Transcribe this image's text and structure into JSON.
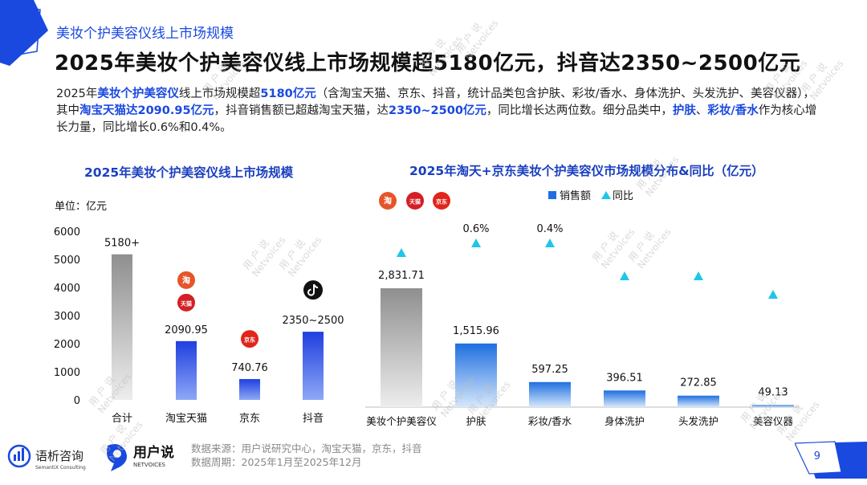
{
  "top_label": "美妆个护美容仪线上市场规模",
  "title": "2025年美妆个护美容仪线上市场规模超5180亿元，抖音达2350~2500亿元",
  "summary": [
    {
      "t": "2025年",
      "hl": false
    },
    {
      "t": "美妆个护美容仪",
      "hl": true
    },
    {
      "t": "线上市场规模超",
      "hl": false
    },
    {
      "t": "5180亿元",
      "hl": true
    },
    {
      "t": "（含淘宝天猫、京东、抖音，统计品类包含护肤、彩妆/香水、身体洗护、头发洗护、美容仪器），其中",
      "hl": false
    },
    {
      "t": "淘宝天猫达2090.95亿元",
      "hl": true
    },
    {
      "t": "，抖音销售额已超越淘宝天猫，达",
      "hl": false
    },
    {
      "t": "2350~2500亿元",
      "hl": true
    },
    {
      "t": "，同比增长达两位数。细分品类中，",
      "hl": false
    },
    {
      "t": "护肤",
      "hl": true
    },
    {
      "t": "、",
      "hl": false
    },
    {
      "t": "彩妆/香水",
      "hl": true
    },
    {
      "t": "作为核心增长力量，同比增长0.6%和0.4%。",
      "hl": false
    }
  ],
  "chart1_title": "2025年美妆个护美容仪线上市场规模",
  "chart2_title": "2025年淘天+京东美妆个护美容仪市场规模分布&同比（亿元）",
  "unit_label": "单位：亿元",
  "footer": {
    "source": "数据来源：用户说研究中心，淘宝天猫，京东，抖音",
    "period": "数据周期：2025年1月至2025年12月"
  },
  "logos": {
    "semantix_cn": "语析咨询",
    "semantix_en": "SemantiX Consulting",
    "netvoices_cn": "用户说",
    "netvoices_en": "NETVOICES"
  },
  "platform_icons": {
    "taobao": "淘",
    "tmall": "天猫",
    "jd": "京东"
  },
  "watermark": {
    "cn": "用 户 说",
    "en": "Netvoices"
  },
  "page_number": "9",
  "colors": {
    "accent": "#1a49e0",
    "title_blue": "#1a3fbf",
    "triangle": "#1ec6ea",
    "gray_bar": "#9a9a9a"
  },
  "chart_data": [
    {
      "type": "bar",
      "title": "2025年美妆个护美容仪线上市场规模",
      "ylabel": "单位：亿元",
      "ylim": [
        0,
        6000
      ],
      "yticks": [
        0,
        1000,
        2000,
        3000,
        4000,
        5000,
        6000
      ],
      "categories": [
        "合计",
        "淘宝天猫",
        "京东",
        "抖音"
      ],
      "values": [
        5180,
        2090.95,
        740.76,
        2425
      ],
      "labels": [
        "5180+",
        "2090.95",
        "740.76",
        "2350~2500"
      ]
    },
    {
      "type": "bar",
      "title": "2025年淘天+京东美妆个护美容仪市场规模分布&同比（亿元）",
      "legend": [
        "销售额",
        "同比"
      ],
      "legend_position": "top",
      "categories": [
        "美妆个护美容仪",
        "护肤",
        "彩妆/香水",
        "身体洗护",
        "头发洗护",
        "美容仪器"
      ],
      "values": [
        2831.71,
        1515.96,
        597.25,
        396.51,
        272.85,
        49.13
      ],
      "labels": [
        "2,831.71",
        "1,515.96",
        "597.25",
        "396.51",
        "272.85",
        "49.13"
      ],
      "yoy_labels": [
        "",
        "0.6%",
        "0.4%",
        "",
        "",
        ""
      ]
    }
  ]
}
